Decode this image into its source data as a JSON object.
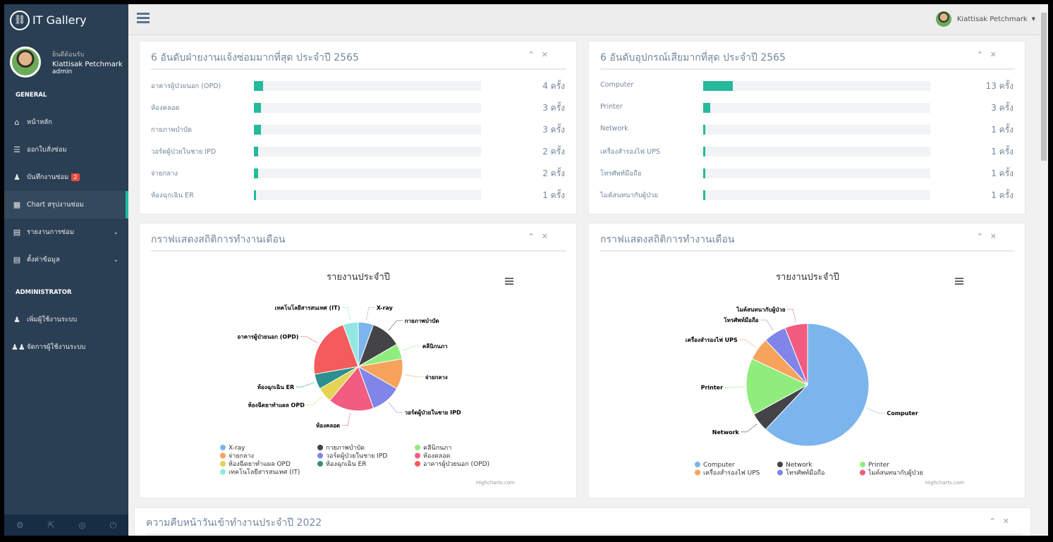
{
  "brand": {
    "title": "IT Gallery"
  },
  "profile": {
    "welcome": "ยินดีต้อนรับ",
    "name": "Kiattisak Petchmark",
    "role": "admin"
  },
  "sidebar": {
    "general_label": "GENERAL",
    "general_items": [
      {
        "label": "หน้าหลัก",
        "icon": "home-icon"
      },
      {
        "label": "ออกใบสั่งซ่อม",
        "icon": "list-icon"
      },
      {
        "label": "บันทึกงานซ่อม",
        "icon": "users-icon",
        "badge": "2"
      },
      {
        "label": "Chart สรุปงานซ่อม",
        "icon": "table-icon"
      },
      {
        "label": "รายงานการซ่อม",
        "icon": "document-icon"
      },
      {
        "label": "ตั้งค่าข้อมูล",
        "icon": "document-icon"
      }
    ],
    "admin_label": "ADMINISTRATOR",
    "admin_items": [
      {
        "label": "เพิ่มผู้ใช้งานระบบ",
        "icon": "user-icon"
      },
      {
        "label": "จัดการผู้ใช้งานระบบ",
        "icon": "users-group-icon"
      }
    ]
  },
  "topbar": {
    "user_name": "Kiattisak Petchmark"
  },
  "panel1": {
    "title": "6 อันดับฝ่ายงานแจ้งซ่อมมากที่สุด ประจำปี 2565",
    "unit": "ครั้ง",
    "max": 100,
    "rows": [
      {
        "label": "อาคารผู้ป่วยนอก (OPD)",
        "value": 4
      },
      {
        "label": "ห้องคลอด",
        "value": 3
      },
      {
        "label": "กายภาพบำบัด",
        "value": 3
      },
      {
        "label": "วอร์ดผู้ป่วยในชาย IPD",
        "value": 2
      },
      {
        "label": "จ่ายกลาง",
        "value": 2
      },
      {
        "label": "ห้องฉุกเฉิน ER",
        "value": 1
      }
    ]
  },
  "panel2": {
    "title": "6 อันดับอุปกรณ์เสียมากที่สุด ประจำปี 2565",
    "unit": "ครั้ง",
    "max": 100,
    "rows": [
      {
        "label": "Computer",
        "value": 13
      },
      {
        "label": "Printer",
        "value": 3
      },
      {
        "label": "Network",
        "value": 1
      },
      {
        "label": "เครื่องสำรองไฟ UPS",
        "value": 1
      },
      {
        "label": "โทรศัพท์มือถือ",
        "value": 1
      },
      {
        "label": "ไมค์สนทนากับผู้ป่วย",
        "value": 1
      }
    ]
  },
  "panel3": {
    "title": "กราฟแสดงสถิติการทำงานเดือน"
  },
  "panel4": {
    "title": "กราฟแสดงสถิติการทำงานเดือน"
  },
  "panel5": {
    "title": "ความคืบหน้าวันเข้าทำงานประจำปี 2022"
  },
  "credit": "Highcharts.com",
  "chart_data": [
    {
      "type": "pie",
      "title": "รายงานประจำปี",
      "series": [
        {
          "name": "",
          "points": [
            {
              "name": "X-ray",
              "value": 5,
              "color": "#7cb5ec"
            },
            {
              "name": "กายภาพบำบัด",
              "value": 10,
              "color": "#434348"
            },
            {
              "name": "คลีนิกนภา",
              "value": 5,
              "color": "#90ed7d"
            },
            {
              "name": "จ่ายกลาง",
              "value": 10,
              "color": "#f7a35c"
            },
            {
              "name": "วอร์ดผู้ป่วยในชาย IPD",
              "value": 10,
              "color": "#8085e9"
            },
            {
              "name": "ห้องคลอด",
              "value": 15,
              "color": "#f15c80"
            },
            {
              "name": "ห้องฉีดยาทำแผล OPD",
              "value": 5,
              "color": "#e4d354"
            },
            {
              "name": "ห้องฉุกเฉิน ER",
              "value": 5,
              "color": "#2b908f"
            },
            {
              "name": "อาคารผู้ป่วยนอก (OPD)",
              "value": 20,
              "color": "#f45b5b"
            },
            {
              "name": "เทคโนโลยีสารสนเทศ (IT)",
              "value": 5,
              "color": "#91e8e1"
            }
          ]
        }
      ],
      "legend": "bottom"
    },
    {
      "type": "pie",
      "title": "รายงานประจำปี",
      "series": [
        {
          "name": "",
          "points": [
            {
              "name": "Computer",
              "value": 62,
              "color": "#7cb5ec"
            },
            {
              "name": "Network",
              "value": 5,
              "color": "#434348"
            },
            {
              "name": "Printer",
              "value": 15,
              "color": "#90ed7d"
            },
            {
              "name": "เครื่องสำรองไฟ UPS",
              "value": 6,
              "color": "#f7a35c"
            },
            {
              "name": "โทรศัพท์มือถือ",
              "value": 6,
              "color": "#8085e9"
            },
            {
              "name": "ไมค์สนทนากับผู้ป่วย",
              "value": 6,
              "color": "#f15c80"
            }
          ]
        }
      ],
      "legend": "bottom"
    }
  ]
}
